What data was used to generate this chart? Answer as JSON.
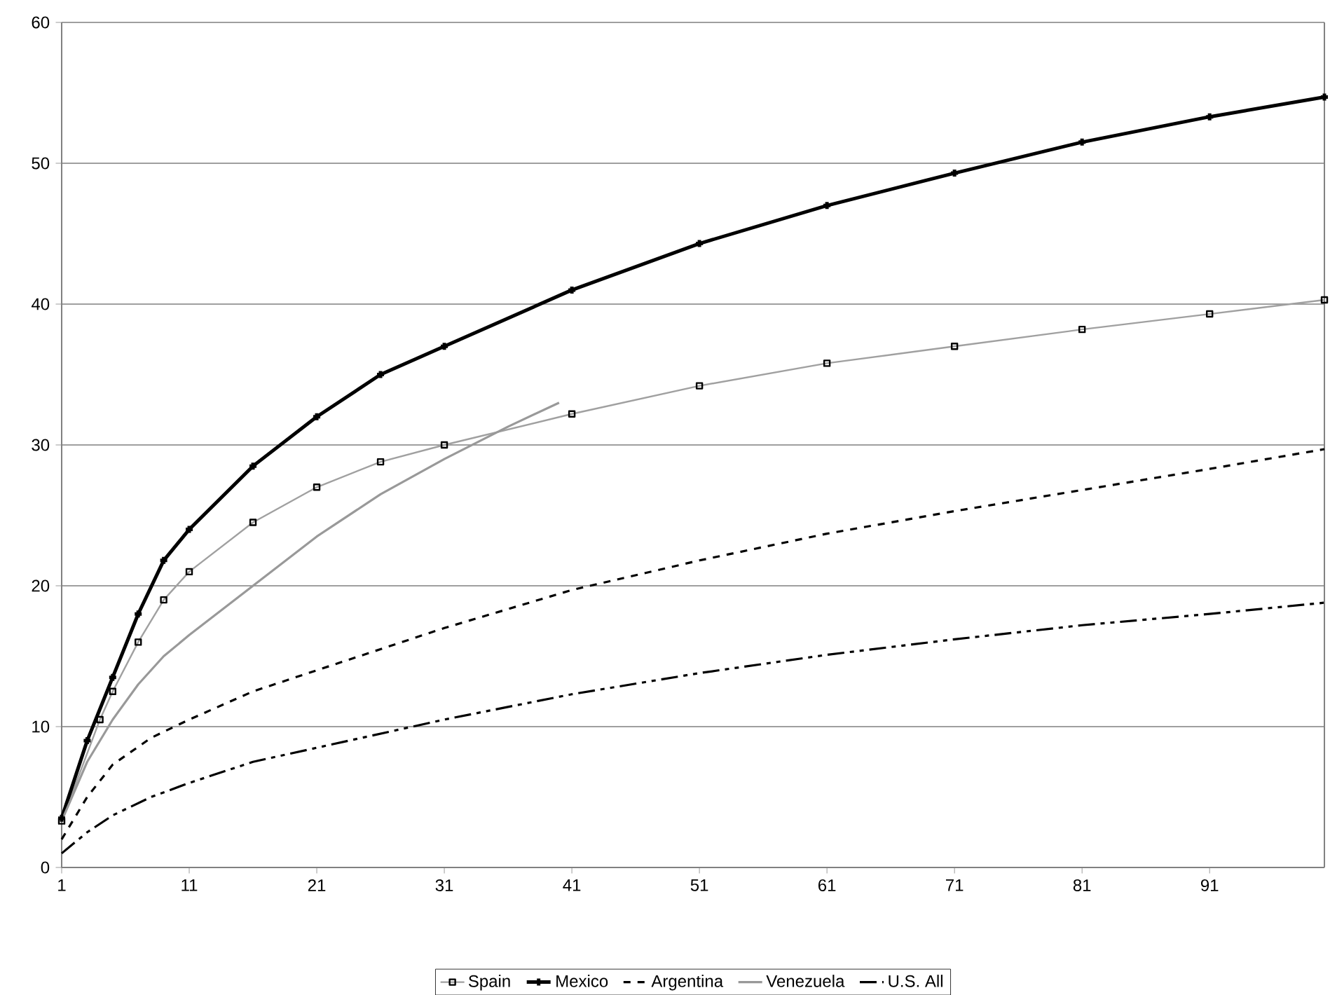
{
  "chart_data": {
    "type": "line",
    "xlim": [
      1,
      100
    ],
    "xticks": [
      1,
      11,
      21,
      31,
      41,
      51,
      61,
      71,
      81,
      91
    ],
    "ylim": [
      0,
      60
    ],
    "yticks": [
      0,
      10,
      20,
      30,
      40,
      50,
      60
    ],
    "grid": "y",
    "legend": "bottom",
    "series": [
      {
        "name": "Spain",
        "color": "#a0a0a0",
        "marker": "square",
        "line_style": "solid",
        "x": [
          1,
          4,
          5,
          7,
          9,
          11,
          16,
          21,
          26,
          31,
          41,
          51,
          61,
          71,
          81,
          91,
          100
        ],
        "values": [
          3.3,
          10.5,
          12.5,
          16,
          19,
          21,
          24.5,
          27,
          28.8,
          30,
          32.2,
          34.2,
          35.8,
          37,
          38.2,
          39.3,
          40.3
        ]
      },
      {
        "name": "Mexico",
        "color": "#000000",
        "marker": "cross",
        "line_style": "solid",
        "x": [
          1,
          3,
          5,
          7,
          9,
          11,
          16,
          21,
          26,
          31,
          41,
          51,
          61,
          71,
          81,
          91,
          100
        ],
        "values": [
          3.5,
          9,
          13.5,
          18,
          21.8,
          24,
          28.5,
          32,
          35,
          37,
          41,
          44.3,
          47,
          49.3,
          51.5,
          53.3,
          54.7
        ]
      },
      {
        "name": "Argentina",
        "color": "#000000",
        "marker": "none",
        "line_style": "dashed",
        "x": [
          1,
          3,
          5,
          8,
          11,
          16,
          21,
          31,
          41,
          51,
          61,
          71,
          81,
          91,
          100
        ],
        "values": [
          2,
          5,
          7.3,
          9.2,
          10.5,
          12.5,
          14,
          17,
          19.7,
          21.8,
          23.7,
          25.3,
          26.8,
          28.3,
          29.7
        ]
      },
      {
        "name": "Venezuela",
        "color": "#999999",
        "marker": "none",
        "line_style": "solid",
        "x": [
          1,
          3,
          5,
          7,
          9,
          11,
          16,
          21,
          26,
          31,
          36,
          40
        ],
        "values": [
          3.3,
          7.5,
          10.5,
          13,
          15,
          16.5,
          20,
          23.5,
          26.5,
          29,
          31.3,
          33
        ]
      },
      {
        "name": "U.S. All",
        "color": "#000000",
        "marker": "none",
        "line_style": "dashdot",
        "x": [
          1,
          3,
          5,
          8,
          11,
          16,
          21,
          31,
          41,
          51,
          61,
          71,
          81,
          91,
          100
        ],
        "values": [
          1,
          2.5,
          3.7,
          5,
          6,
          7.5,
          8.5,
          10.5,
          12.3,
          13.8,
          15.1,
          16.2,
          17.2,
          18,
          18.8
        ]
      }
    ]
  }
}
